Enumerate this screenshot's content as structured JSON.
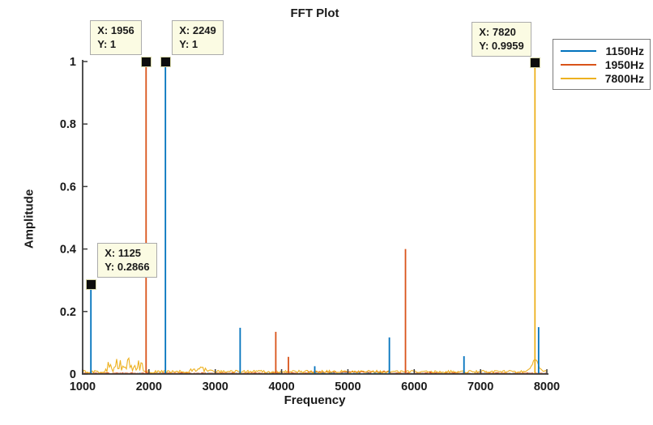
{
  "chart_data": {
    "type": "line",
    "title": "FFT Plot",
    "xlabel": "Frequency",
    "ylabel": "Amplitude",
    "xlim": [
      1000,
      8000
    ],
    "ylim": [
      0,
      1
    ],
    "x_ticks": [
      1000,
      2000,
      3000,
      4000,
      5000,
      6000,
      7000,
      8000
    ],
    "y_ticks": [
      0,
      0.2,
      0.4,
      0.6,
      0.8,
      1
    ],
    "grid": false,
    "axis_color": "#3c3c3c",
    "tick_label_color": "#1a1a1a",
    "series": [
      {
        "name": "1150Hz",
        "color": "#0072BD",
        "peaks": [
          [
            1125,
            0.2866
          ],
          [
            2249,
            1.0
          ],
          [
            3375,
            0.148
          ],
          [
            4500,
            0.025
          ],
          [
            5625,
            0.117
          ],
          [
            6750,
            0.057
          ],
          [
            7875,
            0.15
          ]
        ],
        "noise_floor": 0.002
      },
      {
        "name": "1950Hz",
        "color": "#D95319",
        "peaks": [
          [
            1956,
            1.0
          ],
          [
            3912,
            0.135
          ],
          [
            4103,
            0.055
          ],
          [
            5868,
            0.4
          ],
          [
            6240,
            0.008
          ]
        ],
        "noise_floor": 0.003,
        "noise_bands": [
          [
            4400,
            5650,
            0.004
          ]
        ]
      },
      {
        "name": "7800Hz",
        "color": "#EDB120",
        "peaks": [
          [
            7820,
            0.9959
          ]
        ],
        "noise_floor": 0.009,
        "noise_bands": [
          [
            1340,
            1900,
            0.04
          ],
          [
            2600,
            2980,
            0.012
          ]
        ],
        "skirt": {
          "center": 7820,
          "amp": 0.04,
          "width": 45
        }
      }
    ],
    "legend": {
      "position": "northeast-outside",
      "entries": [
        {
          "label": "1150Hz",
          "color": "#0072BD"
        },
        {
          "label": "1950Hz",
          "color": "#D95319"
        },
        {
          "label": "7800Hz",
          "color": "#EDB120"
        }
      ]
    },
    "datatips": [
      {
        "x": 1956,
        "y": 1,
        "label_x": "X: 1956",
        "label_y": "Y: 1",
        "side": "left"
      },
      {
        "x": 2249,
        "y": 1,
        "label_x": "X: 2249",
        "label_y": "Y: 1",
        "side": "right"
      },
      {
        "x": 7820,
        "y": 0.9959,
        "label_x": "X: 7820",
        "label_y": "Y: 0.9959",
        "side": "left"
      },
      {
        "x": 1125,
        "y": 0.2866,
        "label_x": "X: 1125",
        "label_y": "Y: 0.2866",
        "side": "right"
      }
    ],
    "datatip_style": {
      "bg": "#fbfbe3",
      "border": "#ababab",
      "marker": "#0d0d0d"
    }
  }
}
